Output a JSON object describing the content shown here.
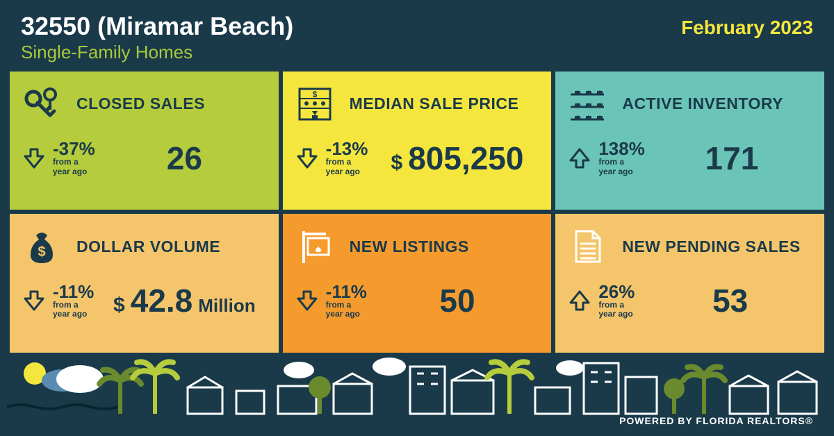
{
  "header": {
    "title": "32550 (Miramar Beach)",
    "subtitle": "Single-Family Homes",
    "date": "February 2023"
  },
  "colors": {
    "bg": "#1a3a4a",
    "title": "#ffffff",
    "subtitle": "#a8c93a",
    "date": "#f5e63d"
  },
  "cards": [
    {
      "id": "closed-sales",
      "label": "CLOSED SALES",
      "bg": "#b5cc3c",
      "icon": "keys",
      "icon_color": "#1a3a4a",
      "arrow": "down",
      "pct": "-37%",
      "pct_sub": "from a year ago",
      "value": "26",
      "prefix": "",
      "suffix": ""
    },
    {
      "id": "median-sale-price",
      "label": "MEDIAN SALE PRICE",
      "bg": "#f5e63d",
      "icon": "abacus",
      "icon_color": "#1a3a4a",
      "arrow": "down",
      "pct": "-13%",
      "pct_sub": "from a year ago",
      "value": "805,250",
      "prefix": "$",
      "suffix": ""
    },
    {
      "id": "active-inventory",
      "label": "ACTIVE INVENTORY",
      "bg": "#6bc4b8",
      "icon": "houses-grid",
      "icon_color": "#1a3a4a",
      "arrow": "up",
      "pct": "138%",
      "pct_sub": "from a year ago",
      "value": "171",
      "prefix": "",
      "suffix": ""
    },
    {
      "id": "dollar-volume",
      "label": "DOLLAR VOLUME",
      "bg": "#f5c56b",
      "icon": "money-bag",
      "icon_color": "#1a3a4a",
      "arrow": "down",
      "pct": "-11%",
      "pct_sub": "from a year ago",
      "value": "42.8",
      "prefix": "$",
      "suffix": "Million"
    },
    {
      "id": "new-listings",
      "label": "NEW LISTINGS",
      "bg": "#f59b2e",
      "icon": "sign",
      "icon_color": "#ffffff",
      "arrow": "down",
      "pct": "-11%",
      "pct_sub": "from a year ago",
      "value": "50",
      "prefix": "",
      "suffix": ""
    },
    {
      "id": "new-pending-sales",
      "label": "NEW PENDING SALES",
      "bg": "#f5c56b",
      "icon": "document",
      "icon_color": "#ffffff",
      "arrow": "up",
      "pct": "26%",
      "pct_sub": "from a year ago",
      "value": "53",
      "prefix": "",
      "suffix": ""
    }
  ],
  "footer": {
    "text": "POWERED BY FLORIDA REALTORS®",
    "scene_colors": {
      "sun": "#f5e63d",
      "cloud": "#ffffff",
      "cloud_blue": "#5a8bb0",
      "palm_green": "#6a8a2e",
      "palm_lime": "#b5cc3c",
      "tree_green": "#6a8a2e",
      "outline": "#ffffff",
      "water": "#0a2530"
    }
  }
}
